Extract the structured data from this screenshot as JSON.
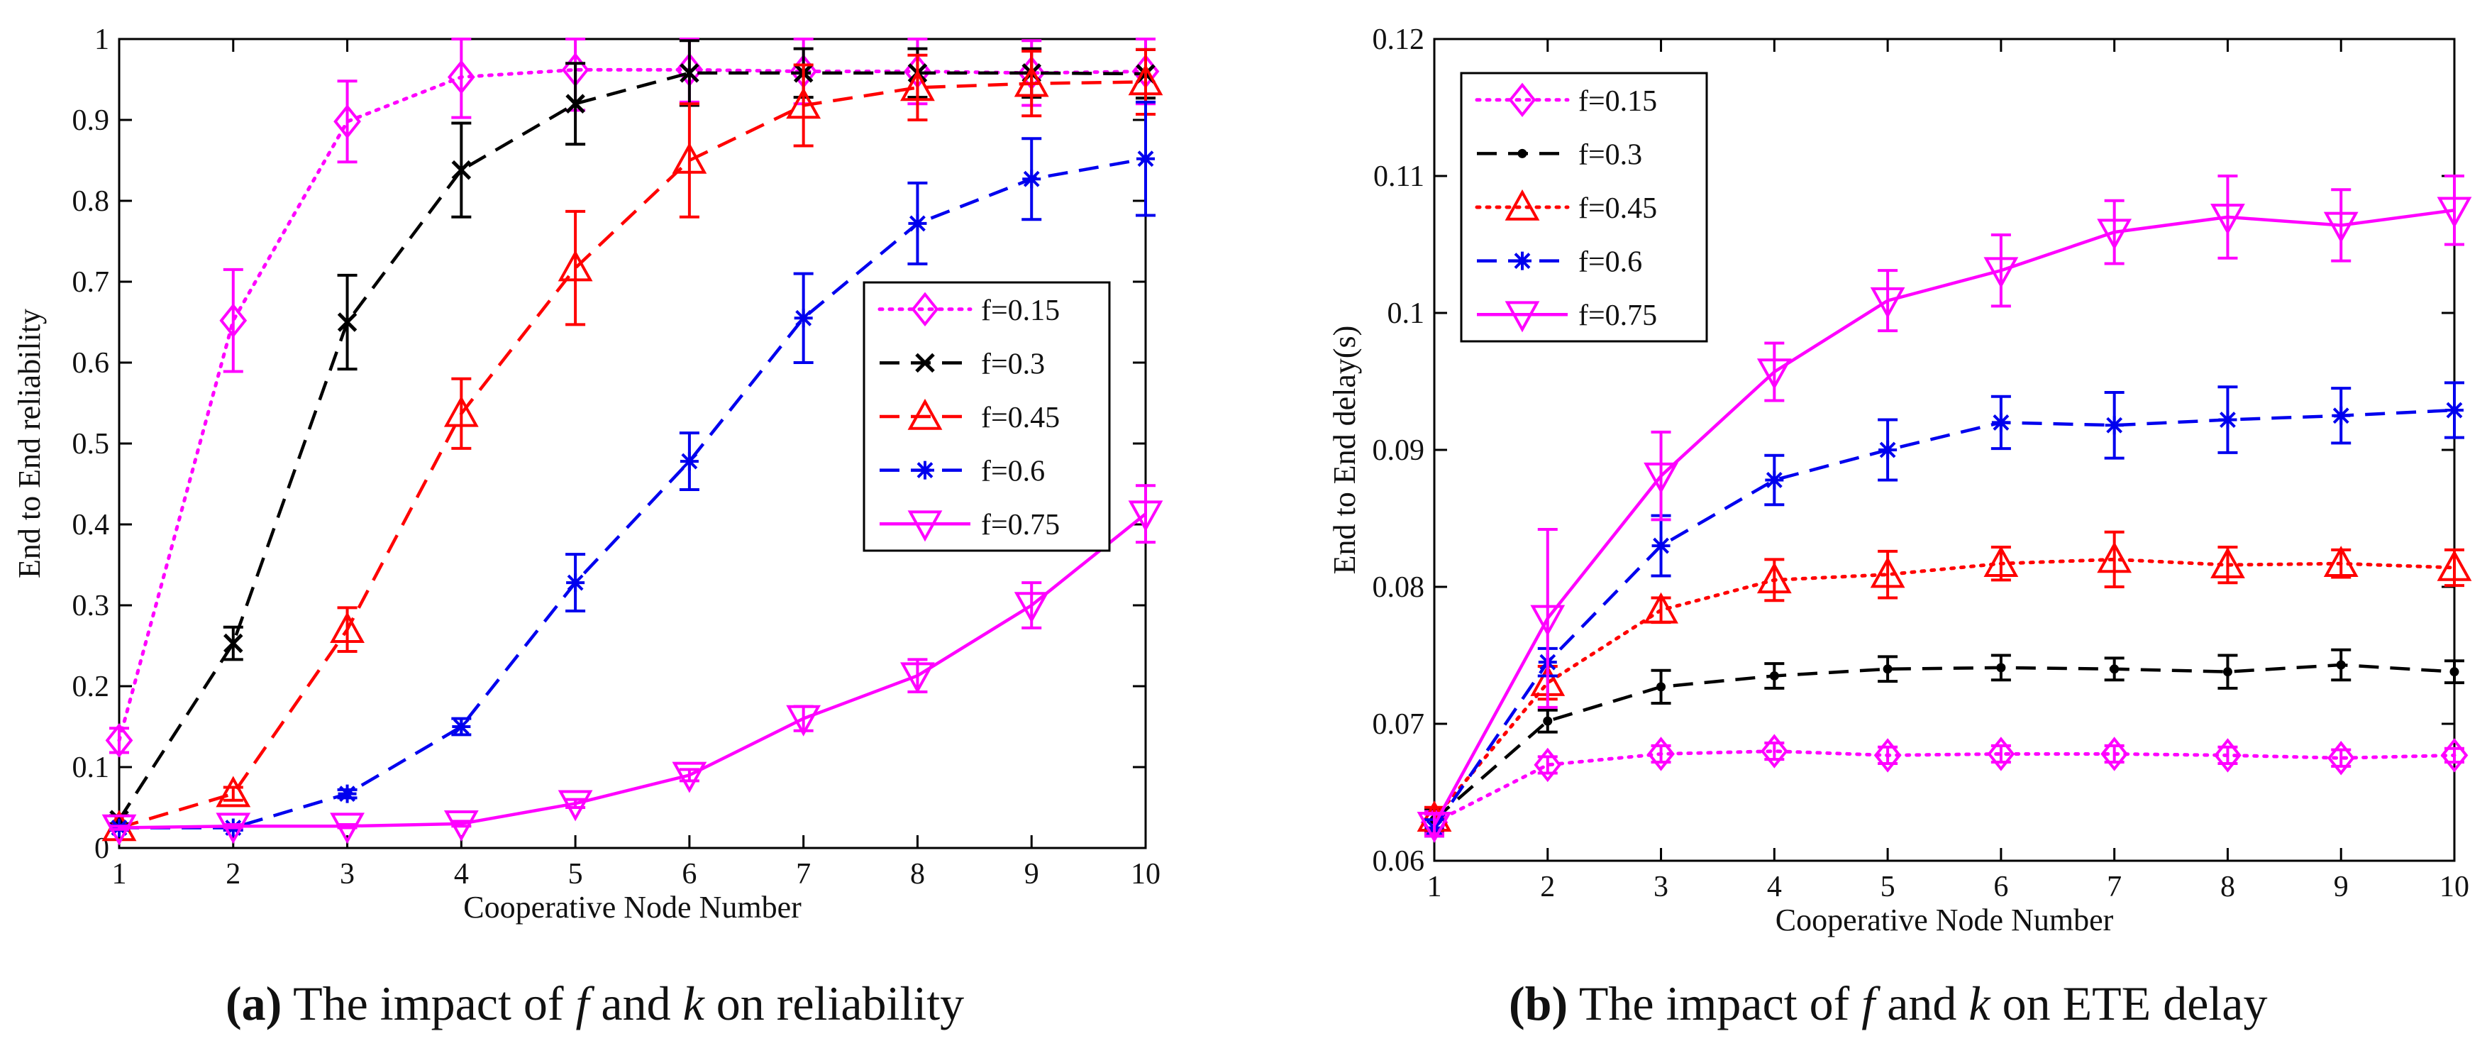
{
  "chart_data": [
    {
      "panel": "a",
      "type": "line",
      "xlabel": "Cooperative Node Number",
      "ylabel": "End to End reliability",
      "xlim": [
        1,
        10
      ],
      "ylim": [
        0,
        1
      ],
      "xticks": [
        "1",
        "2",
        "3",
        "4",
        "5",
        "6",
        "7",
        "8",
        "9",
        "10"
      ],
      "yticks": [
        "0",
        "0.1",
        "0.2",
        "0.3",
        "0.4",
        "0.5",
        "0.6",
        "0.7",
        "0.8",
        "0.9",
        "1"
      ],
      "legend_position": "center-right",
      "x": [
        1,
        2,
        3,
        4,
        5,
        6,
        7,
        8,
        9,
        10
      ],
      "series": [
        {
          "name": "f=0.15",
          "color": "#ff00ff",
          "dash": "dotted",
          "marker": "diamond",
          "values": [
            0.133,
            0.652,
            0.898,
            0.953,
            0.962,
            0.962,
            0.96,
            0.96,
            0.958,
            0.96
          ],
          "errors": [
            0.015,
            0.063,
            0.05,
            0.05,
            0.05,
            0.04,
            0.04,
            0.04,
            0.04,
            0.04
          ]
        },
        {
          "name": "f=0.3",
          "color": "#000000",
          "dash": "dashed",
          "marker": "x",
          "values": [
            0.035,
            0.253,
            0.65,
            0.838,
            0.92,
            0.958,
            0.958,
            0.958,
            0.958,
            0.957
          ],
          "errors": [
            0.005,
            0.02,
            0.058,
            0.058,
            0.05,
            0.04,
            0.03,
            0.03,
            0.03,
            0.03
          ]
        },
        {
          "name": "f=0.45",
          "color": "#ff0000",
          "dash": "dashed",
          "marker": "triangle",
          "values": [
            0.025,
            0.067,
            0.27,
            0.537,
            0.717,
            0.85,
            0.918,
            0.94,
            0.945,
            0.947
          ],
          "errors": [
            0.003,
            0.008,
            0.027,
            0.043,
            0.07,
            0.07,
            0.05,
            0.04,
            0.04,
            0.04
          ]
        },
        {
          "name": "f=0.6",
          "color": "#0000ee",
          "dash": "dashed",
          "marker": "star",
          "values": [
            0.025,
            0.025,
            0.067,
            0.15,
            0.328,
            0.478,
            0.655,
            0.772,
            0.827,
            0.852
          ],
          "errors": [
            0.003,
            0.003,
            0.005,
            0.01,
            0.035,
            0.035,
            0.055,
            0.05,
            0.05,
            0.07
          ]
        },
        {
          "name": "f=0.75",
          "color": "#ff00ff",
          "dash": "solid",
          "marker": "triangle-down",
          "values": [
            0.025,
            0.027,
            0.027,
            0.03,
            0.055,
            0.09,
            0.16,
            0.213,
            0.3,
            0.413
          ],
          "errors": [
            0.002,
            0.002,
            0.002,
            0.003,
            0.005,
            0.007,
            0.015,
            0.02,
            0.028,
            0.035
          ]
        }
      ]
    },
    {
      "panel": "b",
      "type": "line",
      "xlabel": "Cooperative Node Number",
      "ylabel": "End to End delay(s)",
      "xlim": [
        1,
        10
      ],
      "ylim": [
        0.06,
        0.12
      ],
      "xticks": [
        "1",
        "2",
        "3",
        "4",
        "5",
        "6",
        "7",
        "8",
        "9",
        "10"
      ],
      "yticks": [
        "0.06",
        "0.07",
        "0.08",
        "0.09",
        "0.1",
        "0.11",
        "0.12"
      ],
      "legend_position": "top-left",
      "x": [
        1,
        2,
        3,
        4,
        5,
        6,
        7,
        8,
        9,
        10
      ],
      "series": [
        {
          "name": "f=0.15",
          "color": "#ff00ff",
          "dash": "dotted",
          "marker": "diamond",
          "values": [
            0.0628,
            0.067,
            0.0678,
            0.068,
            0.0677,
            0.0678,
            0.0678,
            0.0677,
            0.0675,
            0.0677
          ],
          "errors": [
            0.0008,
            0.0006,
            0.0006,
            0.0006,
            0.0006,
            0.0006,
            0.0006,
            0.0006,
            0.0006,
            0.0005
          ]
        },
        {
          "name": "f=0.3",
          "color": "#000000",
          "dash": "dashed",
          "marker": "dot",
          "values": [
            0.063,
            0.0702,
            0.0727,
            0.0735,
            0.074,
            0.0741,
            0.074,
            0.0738,
            0.0743,
            0.0738
          ],
          "errors": [
            0.0008,
            0.0008,
            0.0012,
            0.0009,
            0.0009,
            0.0009,
            0.0008,
            0.0012,
            0.0011,
            0.0008
          ]
        },
        {
          "name": "f=0.45",
          "color": "#ff0000",
          "dash": "dotted",
          "marker": "triangle",
          "values": [
            0.0631,
            0.073,
            0.0783,
            0.0805,
            0.0809,
            0.0817,
            0.082,
            0.0816,
            0.0817,
            0.0814
          ],
          "errors": [
            0.0008,
            0.0012,
            0.0009,
            0.0015,
            0.0017,
            0.0012,
            0.002,
            0.0013,
            0.001,
            0.0013
          ]
        },
        {
          "name": "f=0.6",
          "color": "#0000ee",
          "dash": "dashed",
          "marker": "star",
          "values": [
            0.0624,
            0.0745,
            0.083,
            0.0878,
            0.09,
            0.092,
            0.0918,
            0.0922,
            0.0925,
            0.0929
          ],
          "errors": [
            0.0006,
            0.001,
            0.0022,
            0.0018,
            0.0022,
            0.0019,
            0.0024,
            0.0024,
            0.002,
            0.002
          ]
        },
        {
          "name": "f=0.75",
          "color": "#ff00ff",
          "dash": "solid",
          "marker": "triangle-down",
          "values": [
            0.0626,
            0.0777,
            0.0881,
            0.0957,
            0.1009,
            0.1031,
            0.1059,
            0.107,
            0.1064,
            0.1075
          ],
          "errors": [
            0.0008,
            0.0065,
            0.0032,
            0.0021,
            0.0022,
            0.0026,
            0.0023,
            0.003,
            0.0026,
            0.0025
          ]
        }
      ]
    }
  ],
  "captions": [
    {
      "label": "(a)",
      "pre": "The impact of",
      "var1": "f",
      "mid": "and",
      "var2": "k",
      "post": "on reliability"
    },
    {
      "label": "(b)",
      "pre": "The impact of",
      "var1": "f",
      "mid": "and",
      "var2": "k",
      "post": "on ETE delay"
    }
  ]
}
